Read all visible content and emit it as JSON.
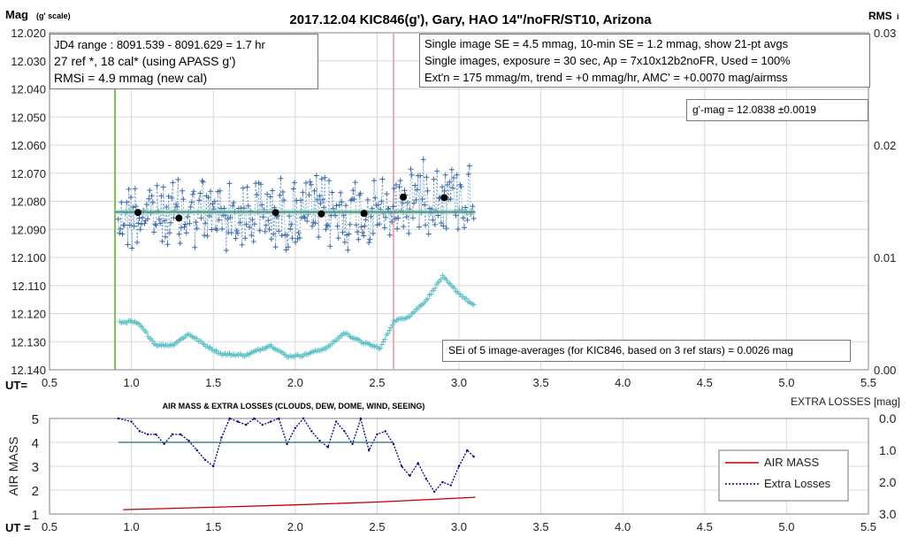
{
  "chart_data": [
    {
      "type": "scatter",
      "title": "2017.12.04  KIC846(g'),  Gary, HAO 14\"/noFR/ST10,  Arizona",
      "ylabel": "Mag",
      "ylabel_sub": "(g' scale)",
      "y2label": "RMS",
      "y2label_sub": "i",
      "xlabel": "UT=",
      "xlim": [
        0.5,
        5.5
      ],
      "ylim": [
        12.02,
        12.14
      ],
      "y_inverted": true,
      "y2lim": [
        0,
        0.03
      ],
      "x_ticks": [
        "0.5",
        "1.0",
        "1.5",
        "2.0",
        "2.5",
        "3.0",
        "3.5",
        "4.0",
        "4.5",
        "5.0",
        "5.5"
      ],
      "y_ticks": [
        "12.020",
        "12.030",
        "12.040",
        "12.050",
        "12.060",
        "12.070",
        "12.080",
        "12.090",
        "12.100",
        "12.110",
        "12.120",
        "12.130",
        "12.140"
      ],
      "y2_ticks": [
        "0.03",
        "0.02",
        "0.01",
        "0.00"
      ],
      "grid": true,
      "vlines": [
        {
          "x": 0.9,
          "color": "#7cc24a"
        },
        {
          "x": 2.6,
          "color": "#f2aab4"
        }
      ],
      "fit_line": {
        "x": [
          0.9,
          3.1
        ],
        "y": 12.0838,
        "color": "#4f8f86"
      },
      "averages": {
        "name": "21-pt avgs",
        "x": [
          1.04,
          1.29,
          1.88,
          2.16,
          2.42,
          2.66,
          2.91
        ],
        "y": [
          12.084,
          12.086,
          12.084,
          12.0845,
          12.0843,
          12.0785,
          12.0787
        ]
      },
      "single_images_note": "blue '+' markers joined by dotted line, ~340 points between UT 0.92 and 3.09, scattered about 12.070-12.098",
      "rms_note": "cyan '+' markers, RMSi on right axis ~0.0028-0.0083",
      "annotations": [
        "JD4 range : 8091.539 - 8091.629 = 1.7  hr",
        "27 ref *, 18 cal* (using APASS g')",
        "RMSi = 4.9 mmag (new cal)",
        "Single image SE = 4.5 mmag, 10-min SE = 1.2 mmag, show  21-pt avgs",
        "Single images, exposure = 30 sec, Ap = 7x10x12b2noFR,  Used = 100%",
        "Ext'n = 175 mmag/m, trend =  +0 mmag/hr, AMC' = +0.0070 mag/airmss",
        "g'-mag = 12.0838 ±0.0019",
        "SEi of 5 image-averages (for KIC846, based on 3 ref stars) = 0.0026  mag"
      ]
    },
    {
      "type": "line",
      "title": "AIR MASS & EXTRA LOSSES (CLOUDS, DEW, DOME, WIND, SEEING)",
      "xlabel": "UT =",
      "ylabel": "AIR MASS",
      "y2label": "EXTRA LOSSES [mag]",
      "xlim": [
        0.5,
        5.5
      ],
      "ylim": [
        1,
        5
      ],
      "y2lim": [
        0,
        3
      ],
      "y2_inverted": true,
      "x_ticks": [
        "0.5",
        "1.0",
        "1.5",
        "2.0",
        "2.5",
        "3.0",
        "3.5",
        "4.0",
        "4.5",
        "5.0",
        "5.5"
      ],
      "y_ticks": [
        "5",
        "4",
        "3",
        "2",
        "1"
      ],
      "y2_ticks": [
        "0.0",
        "1.0",
        "2.0",
        "3.0"
      ],
      "legend": [
        "AIR MASS",
        "Extra Losses"
      ],
      "legend_position": "right",
      "series": [
        {
          "name": "AIR MASS",
          "color": "#c00000",
          "x": [
            0.95,
            1.5,
            2.0,
            2.5,
            3.1
          ],
          "y": [
            1.18,
            1.28,
            1.38,
            1.5,
            1.7
          ]
        },
        {
          "name": "Extra Losses",
          "color": "#00008b",
          "axis": "right",
          "x": [
            0.92,
            1.0,
            1.05,
            1.1,
            1.15,
            1.2,
            1.25,
            1.3,
            1.35,
            1.4,
            1.45,
            1.5,
            1.55,
            1.6,
            1.65,
            1.7,
            1.75,
            1.8,
            1.85,
            1.9,
            1.95,
            2.0,
            2.05,
            2.1,
            2.15,
            2.2,
            2.25,
            2.3,
            2.35,
            2.4,
            2.45,
            2.5,
            2.55,
            2.6,
            2.65,
            2.7,
            2.75,
            2.8,
            2.85,
            2.9,
            2.95,
            3.0,
            3.05,
            3.09
          ],
          "y": [
            0.0,
            0.1,
            0.4,
            0.5,
            0.5,
            0.8,
            0.5,
            0.5,
            0.7,
            1.0,
            1.3,
            1.5,
            0.6,
            0.0,
            0.1,
            0.2,
            0.0,
            0.2,
            0.1,
            0.0,
            0.8,
            0.3,
            0.0,
            0.4,
            0.7,
            0.9,
            0.1,
            0.4,
            0.8,
            0.0,
            1.0,
            0.5,
            0.4,
            0.8,
            1.5,
            1.8,
            1.4,
            1.9,
            2.3,
            2.0,
            2.1,
            1.5,
            1.0,
            1.2
          ]
        },
        {
          "name": "",
          "color": "#1f6f6f",
          "x": [
            0.92,
            2.6
          ],
          "y": [
            4.0,
            4.0
          ]
        }
      ]
    }
  ]
}
